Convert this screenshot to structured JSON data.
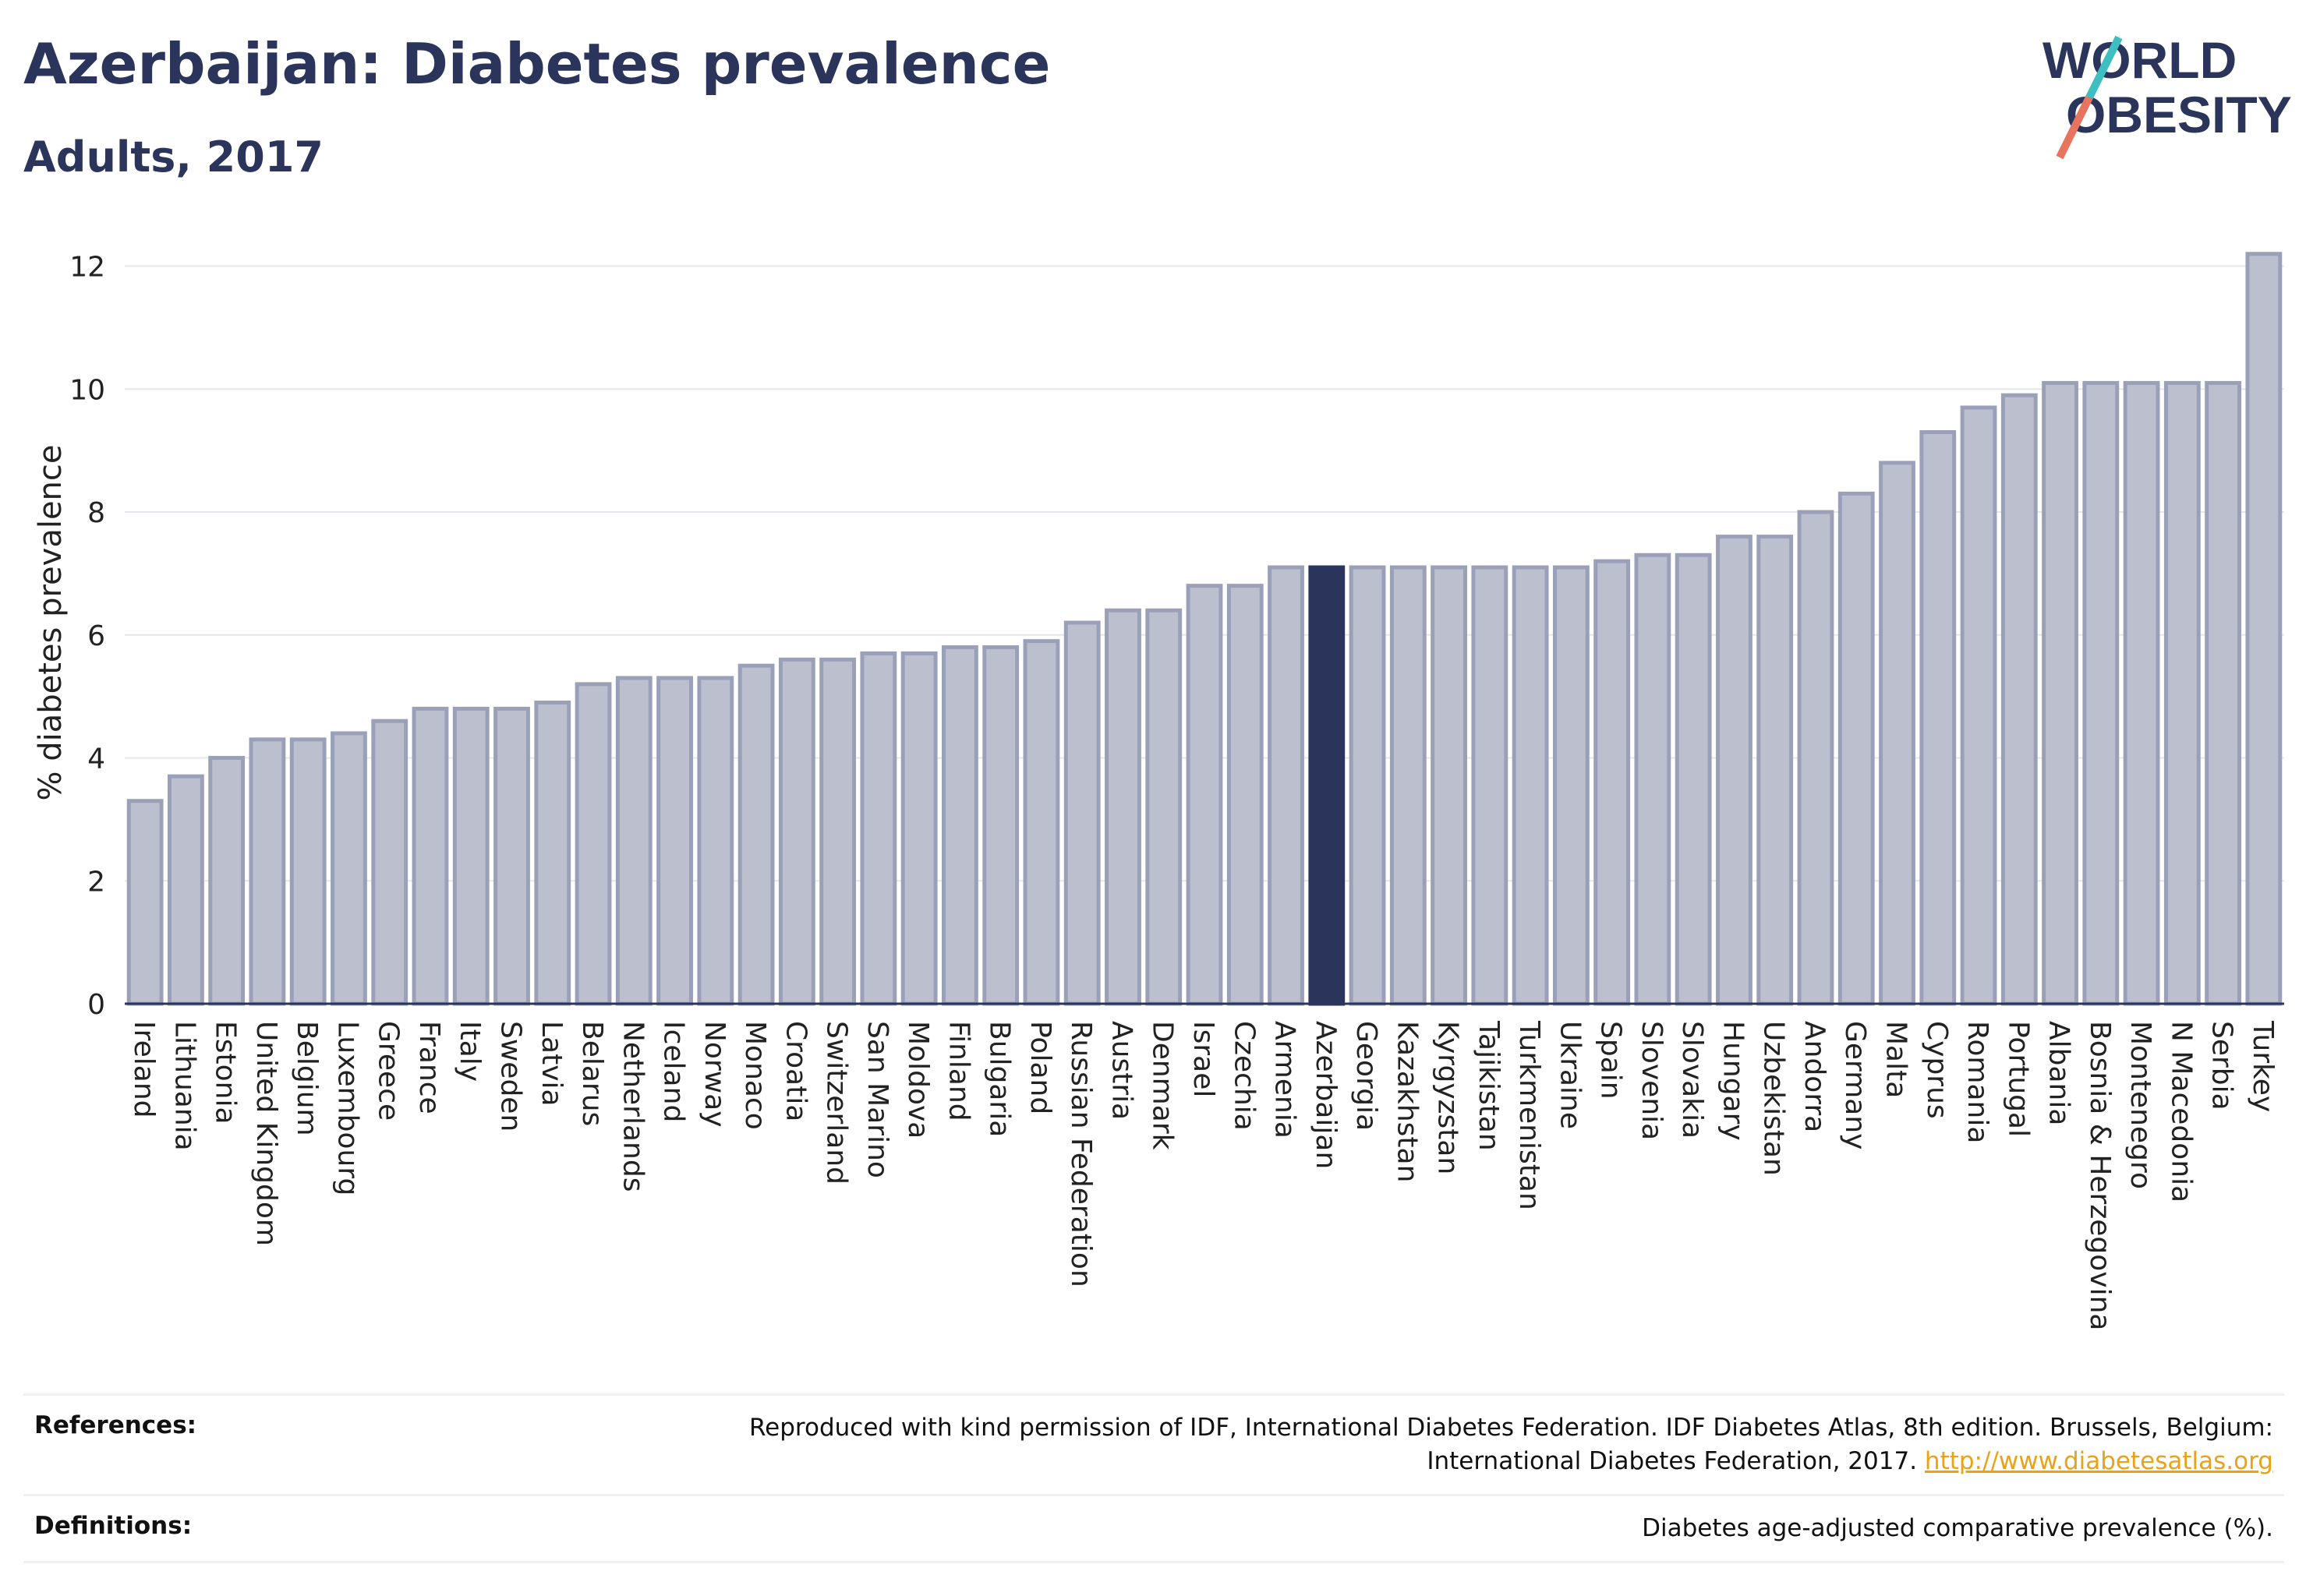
{
  "title": "Azerbaijan: Diabetes prevalence",
  "subtitle": "Adults, 2017",
  "logo": {
    "line1": "WORLD",
    "line2": "OBESITY"
  },
  "colors": {
    "bar": "#bcc0ce",
    "bar_border": "#9aa0b8",
    "highlight": "#2b345a",
    "grid": "#e5e7ec",
    "link": "#e9a21a"
  },
  "chart_data": {
    "type": "bar",
    "ylabel": "% diabetes prevalence",
    "ylim": [
      0,
      12.4
    ],
    "yticks": [
      0,
      2,
      4,
      6,
      8,
      10,
      12
    ],
    "grid": true,
    "highlight": "Azerbaijan",
    "categories": [
      "Ireland",
      "Lithuania",
      "Estonia",
      "United Kingdom",
      "Belgium",
      "Luxembourg",
      "Greece",
      "France",
      "Italy",
      "Sweden",
      "Latvia",
      "Belarus",
      "Netherlands",
      "Iceland",
      "Norway",
      "Monaco",
      "Croatia",
      "Switzerland",
      "San Marino",
      "Moldova",
      "Finland",
      "Bulgaria",
      "Poland",
      "Russian Federation",
      "Austria",
      "Denmark",
      "Israel",
      "Czechia",
      "Armenia",
      "Azerbaijan",
      "Georgia",
      "Kazakhstan",
      "Kyrgyzstan",
      "Tajikistan",
      "Turkmenistan",
      "Ukraine",
      "Spain",
      "Slovenia",
      "Slovakia",
      "Hungary",
      "Uzbekistan",
      "Andorra",
      "Germany",
      "Malta",
      "Cyprus",
      "Romania",
      "Portugal",
      "Albania",
      "Bosnia & Herzegovina",
      "Montenegro",
      "N Macedonia",
      "Serbia",
      "Turkey"
    ],
    "values": [
      3.3,
      3.7,
      4.0,
      4.3,
      4.3,
      4.4,
      4.6,
      4.8,
      4.8,
      4.8,
      4.9,
      5.2,
      5.3,
      5.3,
      5.3,
      5.5,
      5.6,
      5.6,
      5.7,
      5.7,
      5.8,
      5.8,
      5.9,
      6.2,
      6.4,
      6.4,
      6.8,
      6.8,
      7.1,
      7.1,
      7.1,
      7.1,
      7.1,
      7.1,
      7.1,
      7.1,
      7.2,
      7.3,
      7.3,
      7.6,
      7.6,
      8.0,
      8.3,
      8.8,
      9.3,
      9.7,
      9.9,
      10.1,
      10.1,
      10.1,
      10.1,
      10.1,
      12.2
    ]
  },
  "footer": {
    "references_label": "References:",
    "references_text": "Reproduced with kind permission of IDF, International Diabetes Federation. IDF Diabetes Atlas, 8th edition. Brussels, Belgium: International Diabetes Federation, 2017.",
    "references_link": "http://www.diabetesatlas.org",
    "definitions_label": "Definitions:",
    "definitions_text": "Diabetes age-adjusted comparative prevalence (%)."
  }
}
